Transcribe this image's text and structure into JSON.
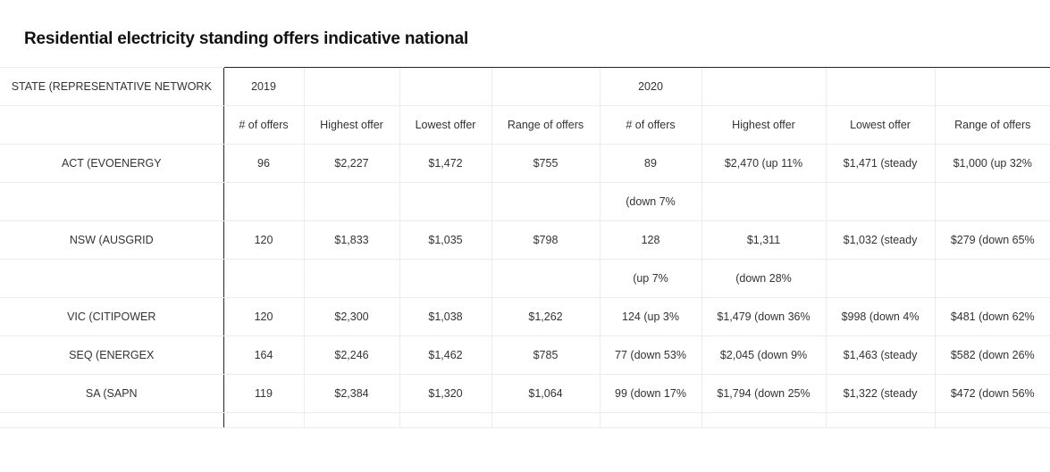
{
  "title": "Residential electricity standing offers indicative national",
  "table": {
    "header": [
      "STATE (REPRESENTATIVE NETWORK",
      "2019",
      "",
      "",
      "",
      "2020",
      "",
      "",
      ""
    ],
    "subheader": [
      "",
      "# of offers",
      "Highest offer",
      "Lowest offer",
      "Range of offers",
      "# of offers",
      "Highest offer",
      "Lowest offer",
      "Range of offers"
    ],
    "rows": [
      [
        "ACT (EVOENERGY",
        "96",
        "$2,227",
        "$1,472",
        "$755",
        "89",
        "$2,470 (up 11%",
        "$1,471 (steady",
        "$1,000 (up 32%"
      ],
      [
        "",
        "",
        "",
        "",
        "",
        "(down 7%",
        "",
        "",
        ""
      ],
      [
        "NSW (AUSGRID",
        "120",
        "$1,833",
        "$1,035",
        "$798",
        "128",
        "$1,311",
        "$1,032 (steady",
        "$279 (down 65%"
      ],
      [
        "",
        "",
        "",
        "",
        "",
        "(up 7%",
        "(down 28%",
        "",
        ""
      ],
      [
        "VIC (CITIPOWER",
        "120",
        "$2,300",
        "$1,038",
        "$1,262",
        "124 (up 3%",
        "$1,479 (down 36%",
        "$998 (down 4%",
        "$481 (down 62%"
      ],
      [
        "SEQ (ENERGEX",
        "164",
        "$2,246",
        "$1,462",
        "$785",
        "77 (down 53%",
        "$2,045 (down 9%",
        "$1,463 (steady",
        "$582 (down 26%"
      ],
      [
        "SA (SAPN",
        "119",
        "$2,384",
        "$1,320",
        "$1,064",
        "99 (down 17%",
        "$1,794 (down 25%",
        "$1,322 (steady",
        "$472 (down 56%"
      ]
    ]
  }
}
